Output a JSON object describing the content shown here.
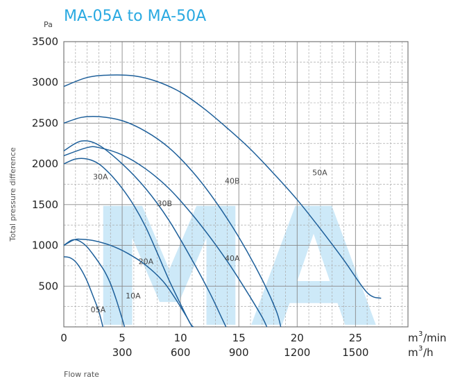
{
  "chart_data": {
    "type": "line",
    "title": "MA-05A  to  MA-50A",
    "ylabel": "Total pressure difference",
    "yunit": "Pa",
    "xlabel": "Flow rate",
    "xunit_primary_base": "m",
    "xunit_primary_exp": "3",
    "xunit_primary_suffix": "/min",
    "xunit_secondary_base": "m",
    "xunit_secondary_exp": "3",
    "xunit_secondary_suffix": "/h",
    "watermark": "MA",
    "xlim": [
      0,
      29.5
    ],
    "ylim": [
      0,
      3500
    ],
    "grid": true,
    "y_ticks": [
      500,
      1000,
      1500,
      2000,
      2500,
      3000,
      3500
    ],
    "x_ticks": [
      {
        "value": 0,
        "label": "0",
        "sub": ""
      },
      {
        "value": 5,
        "label": "5",
        "sub": "300"
      },
      {
        "value": 10,
        "label": "10",
        "sub": "600"
      },
      {
        "value": 15,
        "label": "15",
        "sub": "900"
      },
      {
        "value": 20,
        "label": "20",
        "sub": "1200"
      },
      {
        "value": 25,
        "label": "25",
        "sub": "1500"
      }
    ],
    "series": [
      {
        "name": "05A",
        "label_at": [
          2.3,
          180
        ],
        "points": [
          [
            0,
            860
          ],
          [
            0.5,
            850
          ],
          [
            1,
            800
          ],
          [
            1.5,
            700
          ],
          [
            2,
            560
          ],
          [
            2.5,
            380
          ],
          [
            3,
            190
          ],
          [
            3.35,
            0
          ]
        ]
      },
      {
        "name": "10A",
        "label_at": [
          5.3,
          350
        ],
        "points": [
          [
            0,
            1000
          ],
          [
            0.6,
            1060
          ],
          [
            1,
            1070
          ],
          [
            1.5,
            1040
          ],
          [
            2,
            980
          ],
          [
            2.5,
            890
          ],
          [
            3,
            790
          ],
          [
            3.5,
            680
          ],
          [
            4,
            530
          ],
          [
            4.5,
            330
          ],
          [
            5,
            100
          ],
          [
            5.2,
            0
          ]
        ]
      },
      {
        "name": "20A",
        "label_at": [
          6.4,
          770
        ],
        "points": [
          [
            0,
            1000
          ],
          [
            0.9,
            1070
          ],
          [
            1.5,
            1075
          ],
          [
            2.5,
            1060
          ],
          [
            4,
            1000
          ],
          [
            5.5,
            900
          ],
          [
            7,
            760
          ],
          [
            8.5,
            560
          ],
          [
            9.5,
            360
          ],
          [
            10.5,
            130
          ],
          [
            11,
            0
          ]
        ]
      },
      {
        "name": "30A",
        "label_at": [
          2.5,
          1810
        ],
        "points": [
          [
            0,
            2000
          ],
          [
            1,
            2060
          ],
          [
            2,
            2060
          ],
          [
            3,
            2000
          ],
          [
            4,
            1870
          ],
          [
            5,
            1700
          ],
          [
            6,
            1490
          ],
          [
            7,
            1230
          ],
          [
            8,
            910
          ],
          [
            9,
            580
          ],
          [
            10,
            280
          ],
          [
            10.8,
            50
          ],
          [
            11.1,
            0
          ]
        ]
      },
      {
        "name": "30B",
        "label_at": [
          8,
          1480
        ],
        "points": [
          [
            0,
            2160
          ],
          [
            1.5,
            2280
          ],
          [
            3,
            2230
          ],
          [
            5,
            2000
          ],
          [
            7,
            1700
          ],
          [
            9,
            1310
          ],
          [
            11,
            820
          ],
          [
            12.5,
            420
          ],
          [
            13.5,
            120
          ],
          [
            13.9,
            0
          ]
        ]
      },
      {
        "name": "40A",
        "label_at": [
          13.8,
          810
        ],
        "points": [
          [
            0,
            2100
          ],
          [
            2,
            2200
          ],
          [
            3,
            2200
          ],
          [
            5,
            2110
          ],
          [
            7,
            1940
          ],
          [
            9,
            1700
          ],
          [
            11,
            1380
          ],
          [
            13,
            1010
          ],
          [
            14.5,
            700
          ],
          [
            16,
            360
          ],
          [
            17,
            120
          ],
          [
            17.4,
            0
          ]
        ]
      },
      {
        "name": "40B",
        "label_at": [
          13.8,
          1760
        ],
        "points": [
          [
            0,
            2500
          ],
          [
            1.5,
            2570
          ],
          [
            3,
            2580
          ],
          [
            5,
            2530
          ],
          [
            7,
            2400
          ],
          [
            9,
            2200
          ],
          [
            11,
            1910
          ],
          [
            13,
            1540
          ],
          [
            15,
            1100
          ],
          [
            17,
            580
          ],
          [
            18.2,
            200
          ],
          [
            18.6,
            0
          ]
        ]
      },
      {
        "name": "50A",
        "label_at": [
          21.3,
          1860
        ],
        "points": [
          [
            0,
            2950
          ],
          [
            2,
            3060
          ],
          [
            4,
            3090
          ],
          [
            6,
            3080
          ],
          [
            8,
            3010
          ],
          [
            10,
            2880
          ],
          [
            12,
            2680
          ],
          [
            14,
            2440
          ],
          [
            16,
            2180
          ],
          [
            18,
            1880
          ],
          [
            20,
            1560
          ],
          [
            22,
            1200
          ],
          [
            24,
            820
          ],
          [
            26,
            420
          ],
          [
            27.2,
            350
          ]
        ]
      }
    ]
  }
}
